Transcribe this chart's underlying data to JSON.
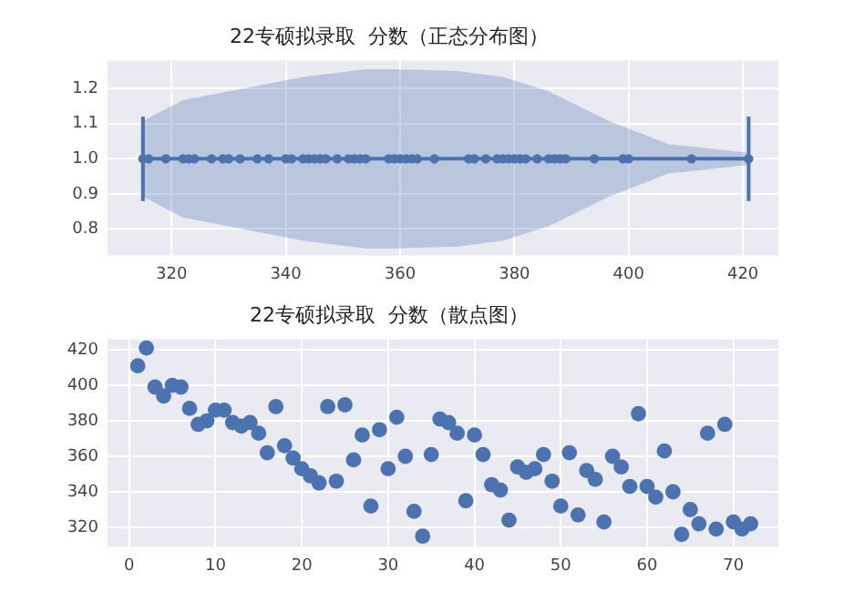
{
  "chart_data": [
    {
      "type": "scatter",
      "title": "22专硕拟录取  分数（正态分布图）",
      "xlim": [
        308.8,
        426.2
      ],
      "xticks": [
        320,
        340,
        360,
        380,
        400,
        420
      ],
      "ylim": [
        0.725,
        1.28
      ],
      "yticks": [
        {
          "value": 0.8,
          "label": "0.8"
        },
        {
          "value": 0.9,
          "label": "0.9"
        },
        {
          "value": 1,
          "label": "1.0"
        },
        {
          "value": 1.1,
          "label": "1.1"
        },
        {
          "value": 1.2,
          "label": "1.2"
        }
      ],
      "grid": true,
      "legend": false,
      "marker": "circle",
      "series": [
        {
          "type": "line",
          "color": "#4c72b0",
          "marker": "none",
          "x": [
            315,
            322,
            332.5,
            343,
            354,
            359,
            370,
            378,
            386,
            396.5,
            407,
            421
          ],
          "values": [
            1,
            1,
            1,
            1,
            1,
            1,
            1,
            1,
            1,
            1,
            1,
            1
          ],
          "upper": [
            1.108,
            1.167,
            1.2,
            1.233,
            1.255,
            1.255,
            1.25,
            1.233,
            1.192,
            1.108,
            1.042,
            1.017
          ],
          "lower": [
            0.892,
            0.833,
            0.8,
            0.767,
            0.745,
            0.745,
            0.75,
            0.767,
            0.808,
            0.892,
            0.958,
            0.983
          ]
        },
        {
          "type": "line",
          "color": "#4c72b0",
          "marker": "none",
          "x": [
            315,
            315
          ],
          "values": [
            0.88,
            1.12
          ]
        },
        {
          "type": "line",
          "color": "#4c72b0",
          "marker": "none",
          "x": [
            421,
            421
          ],
          "values": [
            0.88,
            1.12
          ]
        },
        {
          "type": "scatter",
          "color": "#4c72b0",
          "x": [
            315,
            316,
            319,
            322,
            323,
            324,
            327,
            329,
            330,
            332,
            335,
            337,
            340,
            341,
            343,
            344,
            345,
            346,
            347,
            349,
            351,
            352,
            353,
            354,
            358,
            359,
            360,
            361,
            362,
            363,
            366,
            372,
            373,
            375,
            377,
            378,
            379,
            380,
            381,
            382,
            384,
            386,
            387,
            388,
            389,
            394,
            399,
            400,
            411,
            421
          ],
          "values": [
            1,
            1,
            1,
            1,
            1,
            1,
            1,
            1,
            1,
            1,
            1,
            1,
            1,
            1,
            1,
            1,
            1,
            1,
            1,
            1,
            1,
            1,
            1,
            1,
            1,
            1,
            1,
            1,
            1,
            1,
            1,
            1,
            1,
            1,
            1,
            1,
            1,
            1,
            1,
            1,
            1,
            1,
            1,
            1,
            1,
            1,
            1,
            1,
            1,
            1
          ]
        }
      ]
    },
    {
      "type": "scatter",
      "title": "22专硕拟录取  分数（散点图）",
      "xlim": [
        -2.5,
        75.2
      ],
      "xticks": [
        0,
        10,
        20,
        30,
        40,
        50,
        60,
        70
      ],
      "ylim": [
        309,
        426
      ],
      "yticks": [
        320,
        340,
        360,
        380,
        400,
        420
      ],
      "grid": true,
      "legend": false,
      "marker": "circle",
      "series": [
        {
          "type": "scatter",
          "color": "#4c72b0",
          "x": [
            1,
            2,
            3,
            4,
            5,
            6,
            7,
            8,
            9,
            10,
            11,
            12,
            13,
            14,
            15,
            16,
            17,
            18,
            19,
            20,
            21,
            22,
            23,
            24,
            25,
            26,
            27,
            28,
            29,
            30,
            31,
            32,
            33,
            34,
            35,
            36,
            37,
            38,
            39,
            40,
            41,
            42,
            43,
            44,
            45,
            46,
            47,
            48,
            49,
            50,
            51,
            52,
            53,
            54,
            55,
            56,
            57,
            58,
            59,
            60,
            61,
            62,
            63,
            64,
            65,
            66,
            67,
            68,
            69,
            70,
            71,
            72
          ],
          "values": [
            411,
            421,
            399,
            394,
            400,
            399,
            387,
            378,
            380,
            386,
            386,
            379,
            377,
            379,
            373,
            362,
            388,
            366,
            359,
            353,
            349,
            345,
            388,
            346,
            389,
            358,
            372,
            332,
            375,
            353,
            382,
            360,
            329,
            315,
            361,
            381,
            379,
            373,
            335,
            372,
            361,
            344,
            341,
            324,
            354,
            351,
            353,
            361,
            346,
            332,
            362,
            327,
            352,
            347,
            323,
            360,
            354,
            343,
            384,
            343,
            337,
            363,
            340,
            316,
            330,
            322,
            373,
            319,
            378,
            323,
            319,
            322
          ]
        }
      ]
    }
  ]
}
